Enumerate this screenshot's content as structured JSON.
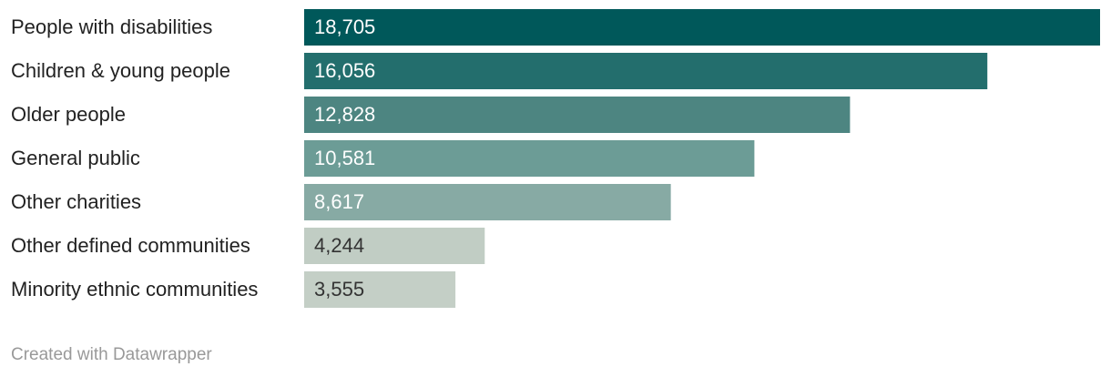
{
  "chart_data": {
    "type": "bar",
    "orientation": "horizontal",
    "categories": [
      "People with disabilities",
      "Children & young people",
      "Older people",
      "General public",
      "Other charities",
      "Other defined communities",
      "Minority ethnic communities"
    ],
    "values": [
      18705,
      16056,
      12828,
      10581,
      8617,
      4244,
      3555
    ],
    "value_labels": [
      "18,705",
      "16,056",
      "12,828",
      "10,581",
      "8,617",
      "4,244",
      "3,555"
    ],
    "colors": [
      "#00585a",
      "#236e6d",
      "#4d8581",
      "#6c9c96",
      "#87aaa4",
      "#c1cdc4",
      "#c4cfc6"
    ],
    "footer": "Created with Datawrapper"
  }
}
